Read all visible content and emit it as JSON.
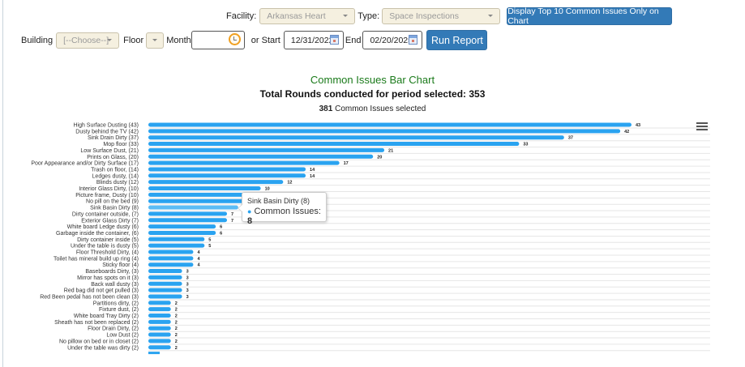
{
  "filters": {
    "facility_label": "Facility:",
    "facility_value": "Arkansas Heart",
    "type_label": "Type:",
    "type_value": "Space Inspections",
    "top10_button": "Display Top 10 Common Issues Only on Chart",
    "building_label": "Building",
    "building_value": "[--Choose--]",
    "floor_label": "Floor",
    "floor_value": "",
    "month_label": "Month",
    "month_value": "",
    "start_label": "or Start",
    "start_value": "12/31/2022",
    "end_label": "End",
    "end_value": "02/20/2025",
    "run_button": "Run Report"
  },
  "header": {
    "chart_title": "Common Issues Bar Chart",
    "rounds_text": "Total Rounds conducted for period selected: 353",
    "issues_count": "381",
    "issues_text": " Common Issues selected"
  },
  "tooltip": {
    "title": "Sink Basin Dirty (8)",
    "series_label": "Common Issues: ",
    "value": "8"
  },
  "colors": {
    "bar": "#2aa3f0",
    "bar_hover": "#5bbcf5",
    "title_green": "#1a7a1a",
    "button_blue": "#337ab7"
  },
  "chart_data": {
    "type": "bar",
    "orientation": "horizontal",
    "title": "Common Issues Bar Chart",
    "subtitle": "Total Rounds conducted for period selected: 353",
    "series": [
      {
        "name": "Common Issues",
        "values": [
          43,
          42,
          37,
          33,
          21,
          20,
          17,
          14,
          14,
          12,
          10,
          10,
          9,
          8,
          7,
          7,
          6,
          6,
          5,
          5,
          4,
          4,
          4,
          3,
          3,
          3,
          3,
          3,
          2,
          2,
          2,
          2,
          2,
          2,
          2,
          2
        ]
      }
    ],
    "categories": [
      "High Surface Dusting (43)",
      "Dusty behind the TV (42)",
      "Sink Drain Dirty (37)",
      "Mop floor (33)",
      "Low Surface Dust, (21)",
      "Prints on Glass, (20)",
      "Poor Appearance and/or Dirty Surface (17)",
      "Trash on floor, (14)",
      "Ledges dusty, (14)",
      "Blinds dusty (12)",
      "Interior Glass Dirty, (10)",
      "Picture frame, Dusty (10)",
      "No pill on the bed (9)",
      "Sink Basin Dirty (8)",
      "Dirty container outside, (7)",
      "Exterior Glass Dirty (7)",
      "White board Ledge dusty (6)",
      "Garbage inside the container, (6)",
      "Dirty container inside (5)",
      "Under the table is dusty (5)",
      "Floor Threshold Dirty, (4)",
      "Toilet has mineral build up ring (4)",
      "Sticky floor (4)",
      "Baseboards Dirty, (3)",
      "Mirror has spots on it (3)",
      "Back wall dusty (3)",
      "Red bag did not get pulled (3)",
      "Red Been pedal has not been clean (3)",
      "Partitions dirty, (2)",
      "Fixture dust, (2)",
      "White board Tray Dirty (2)",
      "Sheath has not been replaced (2)",
      "Floor Drain Dirty, (2)",
      "Low Dust (2)",
      "No pillow on bed or in closet (2)",
      "Under the table was dirty (2)"
    ],
    "data_labels": true,
    "grid": true,
    "legend": "none",
    "xlim": [
      0,
      50
    ],
    "highlighted_index": 13
  }
}
